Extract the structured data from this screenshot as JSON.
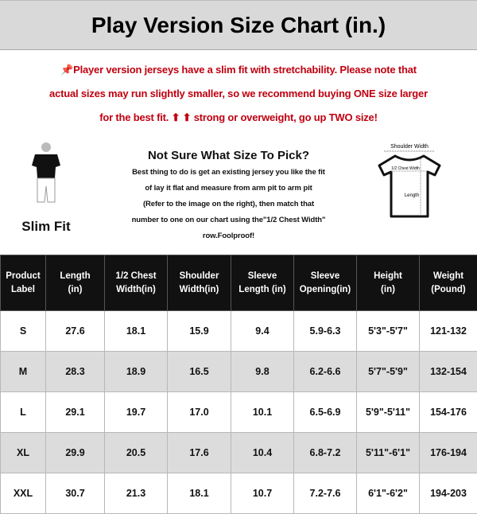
{
  "title": "Play Version Size Chart (in.)",
  "notice": {
    "icon": "pushpin-icon",
    "color": "#c00010",
    "lines": [
      "Player version jerseys have a slim fit with stretchability. Please note that",
      "actual sizes may run slightly smaller, so we recommend buying ONE size larger",
      "for the best fit. ⬆ ⬆ strong or overweight, go up TWO size!"
    ]
  },
  "fit": {
    "icon": "slim-fit-figure-icon",
    "label": "Slim Fit"
  },
  "guide": {
    "heading": "Not Sure What Size To Pick?",
    "lines": [
      "Best thing to do is get an existing jersey you like the fit",
      "of lay it flat and measure from arm pit to arm pit",
      "(Refer to the image on the right), then match that",
      "number to one on our chart using the\"1/2 Chest Width\"",
      "row.Foolproof!"
    ]
  },
  "diagram": {
    "icon": "tshirt-measure-icon",
    "shoulder": "Shoulder Width",
    "chest": "1/2 Chest Width",
    "length": "Length"
  },
  "table": {
    "headers": [
      [
        "Product",
        "Label"
      ],
      [
        "Length",
        "(in)"
      ],
      [
        "1/2 Chest",
        "Width(in)"
      ],
      [
        "Shoulder",
        "Width(in)"
      ],
      [
        "Sleeve",
        "Length (in)"
      ],
      [
        "Sleeve",
        "Opening(in)"
      ],
      [
        "Height",
        "(in)"
      ],
      [
        "Weight",
        "(Pound)"
      ]
    ],
    "rows": [
      [
        "S",
        "27.6",
        "18.1",
        "15.9",
        "9.4",
        "5.9-6.3",
        "5'3\"-5'7\"",
        "121-132"
      ],
      [
        "M",
        "28.3",
        "18.9",
        "16.5",
        "9.8",
        "6.2-6.6",
        "5'7\"-5'9\"",
        "132-154"
      ],
      [
        "L",
        "29.1",
        "19.7",
        "17.0",
        "10.1",
        "6.5-6.9",
        "5'9\"-5'11\"",
        "154-176"
      ],
      [
        "XL",
        "29.9",
        "20.5",
        "17.6",
        "10.4",
        "6.8-7.2",
        "5'11\"-6'1\"",
        "176-194"
      ],
      [
        "XXL",
        "30.7",
        "21.3",
        "18.1",
        "10.7",
        "7.2-7.6",
        "6'1\"-6'2\"",
        "194-203"
      ]
    ]
  }
}
